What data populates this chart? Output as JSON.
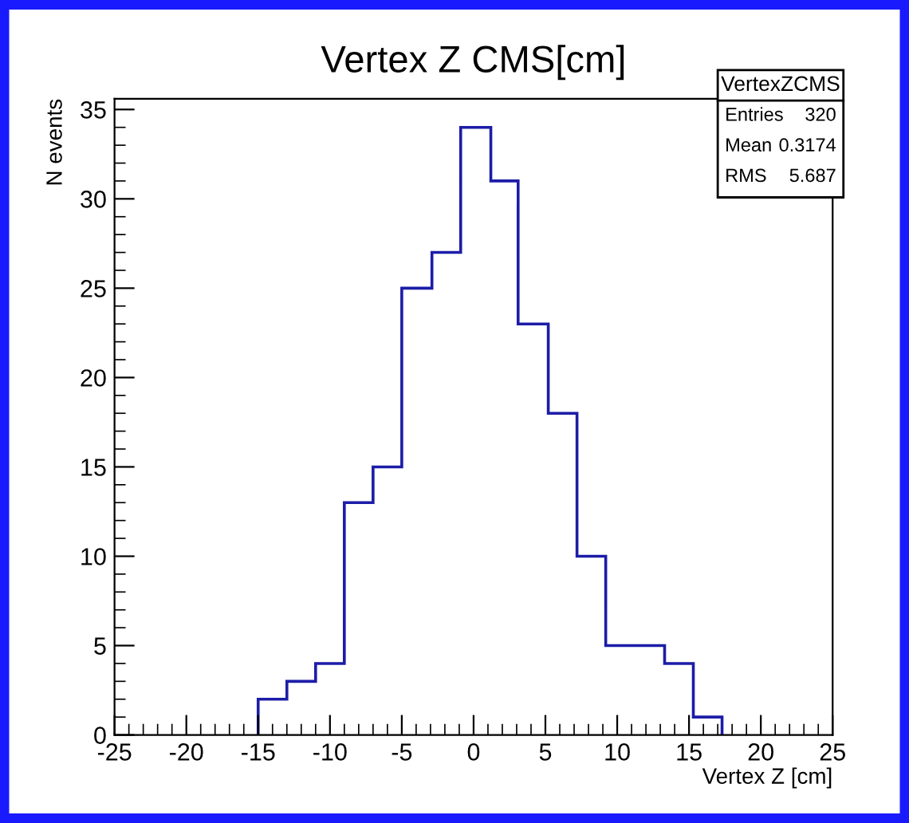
{
  "chart_data": {
    "type": "histogram",
    "title": "Vertex Z CMS[cm]",
    "xlabel": "Vertex Z [cm]",
    "ylabel": "N events",
    "bins": [
      -15,
      -13,
      -11,
      -9,
      -7,
      -5,
      -2.9,
      -0.9,
      1.2,
      3.1,
      5.2,
      7.2,
      9.2,
      11.3,
      13.3,
      15.3,
      17.3
    ],
    "values": [
      2,
      3,
      4,
      13,
      15,
      25,
      27,
      34,
      31,
      23,
      18,
      10,
      5,
      5,
      4,
      1
    ],
    "color": "#1c1ca8",
    "xlim": [
      -25,
      25
    ],
    "xticks": [
      -25,
      -20,
      -15,
      -10,
      -5,
      0,
      5,
      10,
      15,
      20,
      25
    ],
    "ylim": [
      0,
      35.6
    ],
    "yticks": [
      0,
      5,
      10,
      15,
      20,
      25,
      30,
      35
    ],
    "grid": false,
    "annotations": [
      "VertexZCMS",
      "Entries",
      "320",
      "Mean",
      "0.3174",
      "RMS",
      "5.687"
    ]
  }
}
